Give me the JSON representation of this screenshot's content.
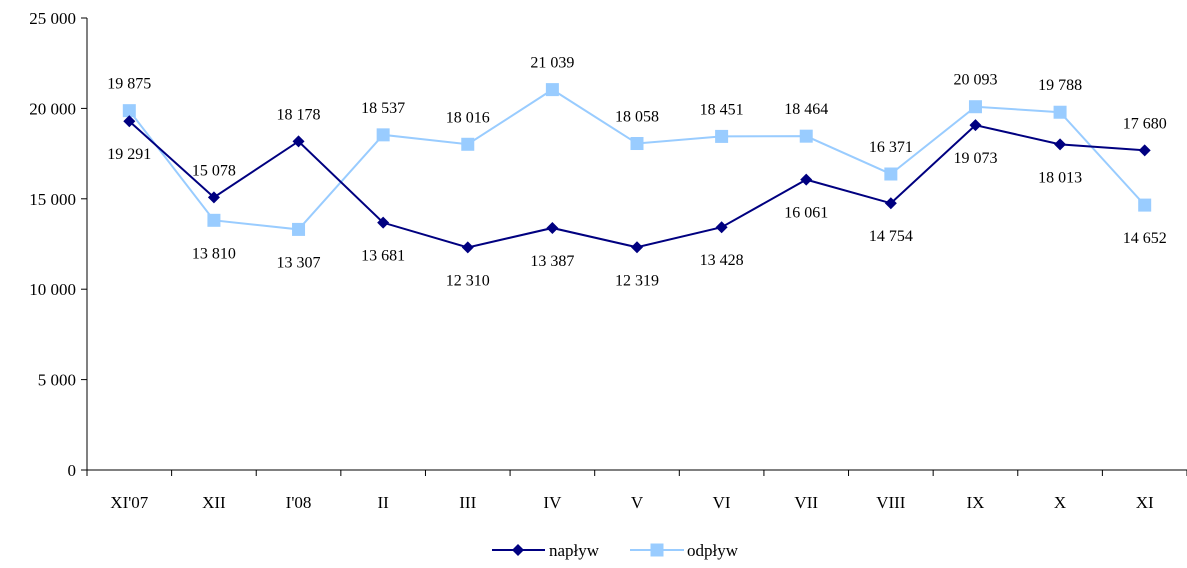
{
  "chart_data": {
    "type": "line",
    "title": "",
    "xlabel": "",
    "ylabel": "",
    "ylim": [
      0,
      25000
    ],
    "y_ticks": [
      0,
      5000,
      10000,
      15000,
      20000,
      25000
    ],
    "y_tick_labels": [
      "0",
      "5 000",
      "10 000",
      "15 000",
      "20 000",
      "25 000"
    ],
    "categories": [
      "XI'07",
      "XII",
      "I'08",
      "II",
      "III",
      "IV",
      "V",
      "VI",
      "VII",
      "VIII",
      "IX",
      "X",
      "XI"
    ],
    "grid": false,
    "legend_position": "bottom",
    "series": [
      {
        "name": "napływ",
        "color": "#000080",
        "marker": "diamond",
        "values": [
          19291,
          15078,
          18178,
          13681,
          12310,
          13387,
          12319,
          13428,
          16061,
          14754,
          19073,
          18013,
          17680
        ],
        "labels": [
          "19 291",
          "15 078",
          "18 178",
          "13 681",
          "12 310",
          "13 387",
          "12 319",
          "13 428",
          "16 061",
          "14 754",
          "19 073",
          "18 013",
          "17 680"
        ]
      },
      {
        "name": "odpływ",
        "color": "#99ccff",
        "marker": "square",
        "values": [
          19875,
          13810,
          13307,
          18537,
          18016,
          21039,
          18058,
          18451,
          18464,
          16371,
          20093,
          19788,
          14652
        ],
        "labels": [
          "19 875",
          "13 810",
          "13 307",
          "18 537",
          "18 016",
          "21 039",
          "18 058",
          "18 451",
          "18 464",
          "16 371",
          "20 093",
          "19 788",
          "14 652"
        ]
      }
    ]
  }
}
